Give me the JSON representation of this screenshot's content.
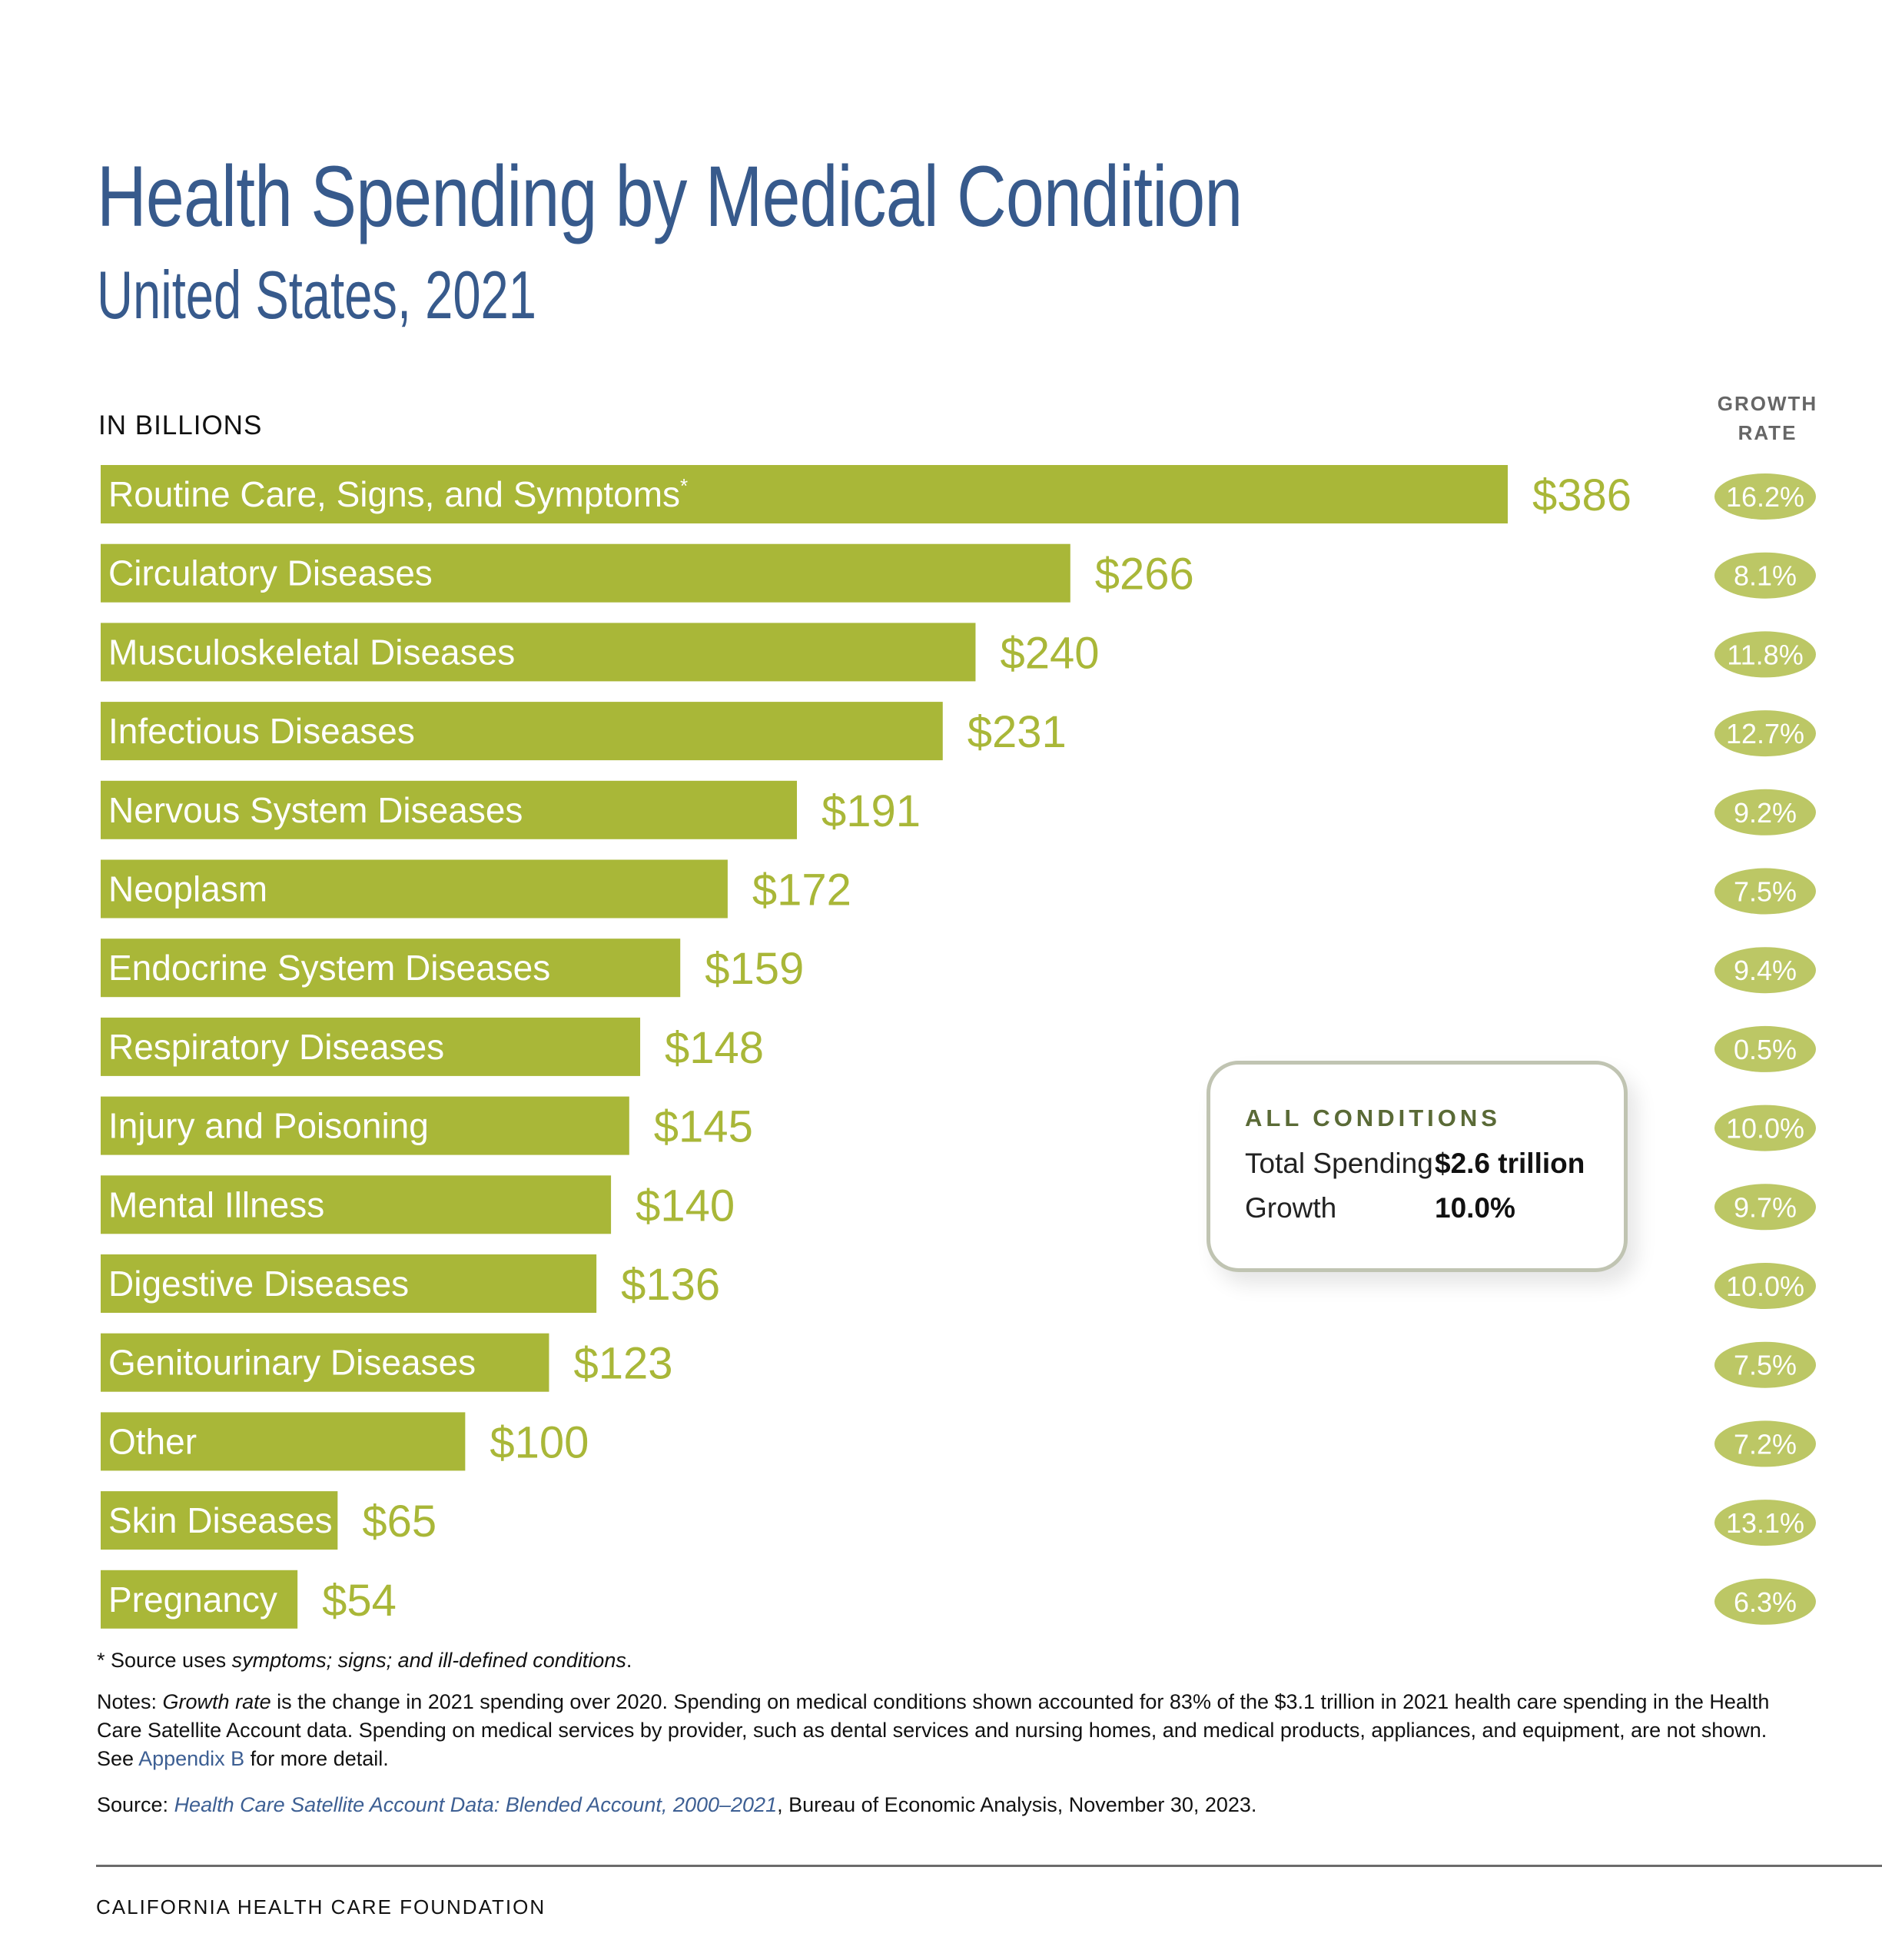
{
  "header": {
    "title": "Health Spending by Medical Condition",
    "subtitle": "United States, 2021",
    "units_label": "IN BILLIONS",
    "growth_header": [
      "GROWTH",
      "RATE"
    ]
  },
  "colors": {
    "title": "#375a8c",
    "bar": "#a9b738",
    "pill": "#bcc765",
    "summary_title": "#5a6a36",
    "link": "#3d5f93"
  },
  "chart_data": {
    "type": "bar",
    "orientation": "horizontal",
    "title": "Health Spending by Medical Condition",
    "subtitle": "United States, 2021",
    "xlabel": "",
    "ylabel": "",
    "units": "IN BILLIONS",
    "value_prefix": "$",
    "xlim": [
      0,
      386
    ],
    "grid": false,
    "categories": [
      "Routine Care, Signs, and Symptoms",
      "Circulatory Diseases",
      "Musculoskeletal Diseases",
      "Infectious Diseases",
      "Nervous System Diseases",
      "Neoplasm",
      "Endocrine System Diseases",
      "Respiratory Diseases",
      "Injury and Poisoning",
      "Mental Illness",
      "Digestive Diseases",
      "Genitourinary Diseases",
      "Other",
      "Skin Diseases",
      "Pregnancy"
    ],
    "footnote_marks": [
      "*",
      "",
      "",
      "",
      "",
      "",
      "",
      "",
      "",
      "",
      "",
      "",
      "",
      "",
      ""
    ],
    "series": [
      {
        "name": "Spending (billions)",
        "values": [
          386,
          266,
          240,
          231,
          191,
          172,
          159,
          148,
          145,
          140,
          136,
          123,
          100,
          65,
          54
        ],
        "labels": [
          "$386",
          "$266",
          "$240",
          "$231",
          "$191",
          "$172",
          "$159",
          "$148",
          "$145",
          "$140",
          "$136",
          "$123",
          "$100",
          "$65",
          "$54"
        ]
      },
      {
        "name": "Growth Rate",
        "values": [
          16.2,
          8.1,
          11.8,
          12.7,
          9.2,
          7.5,
          9.4,
          0.5,
          10.0,
          9.7,
          10.0,
          7.5,
          7.2,
          13.1,
          6.3
        ],
        "labels": [
          "16.2%",
          "8.1%",
          "11.8%",
          "12.7%",
          "9.2%",
          "7.5%",
          "9.4%",
          "0.5%",
          "10.0%",
          "9.7%",
          "10.0%",
          "7.5%",
          "7.2%",
          "13.1%",
          "6.3%"
        ]
      }
    ]
  },
  "summary": {
    "title": "ALL CONDITIONS",
    "rows": [
      {
        "label": "Total Spending",
        "value": "$2.6 trillion"
      },
      {
        "label": "Growth",
        "value": "10.0%"
      }
    ]
  },
  "footnotes": {
    "asterisk_prefix": "* Source uses ",
    "asterisk_italic": "symptoms; signs; and ill-defined conditions",
    "asterisk_suffix": ".",
    "notes_prefix": "Notes: ",
    "notes_italic": "Growth rate",
    "notes_line1_rest": " is the change in 2021 spending over 2020. Spending on medical conditions shown accounted for 83% of the $3.1 trillion in 2021 health care spending in the Health",
    "notes_line2": "Care Satellite Account data. Spending on medical services by provider, such as dental services and nursing homes, and medical products, appliances, and equipment, are not shown.",
    "notes_line3_prefix": "See ",
    "notes_link": "Appendix B",
    "notes_line3_suffix": " for more detail.",
    "source_prefix": "Source: ",
    "source_link": "Health Care Satellite Account Data: Blended Account, 2000–2021",
    "source_suffix": ", Bureau of Economic Analysis, November 30, 2023."
  },
  "footer": {
    "organization": "CALIFORNIA HEALTH CARE FOUNDATION"
  }
}
